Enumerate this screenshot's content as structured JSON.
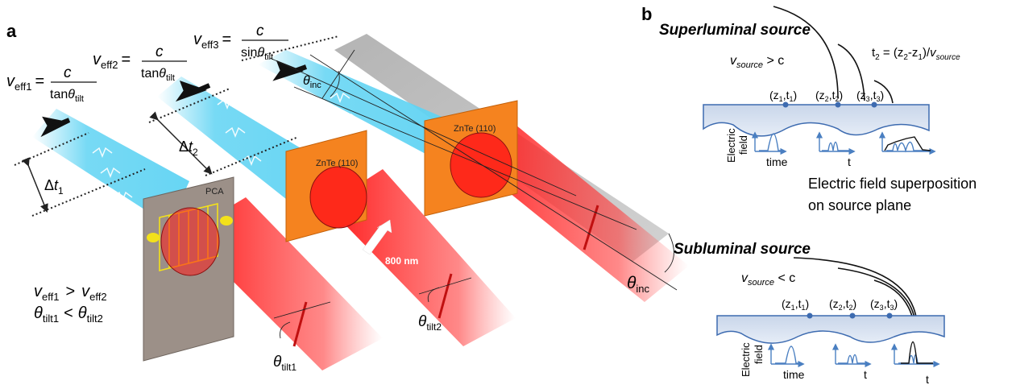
{
  "panels": {
    "a": {
      "label": "a",
      "veff1": {
        "v": "v",
        "sub": "eff1",
        "eq": "=",
        "num": "c",
        "den_pre": "tan",
        "den_theta": "θ",
        "den_sub": "tilt"
      },
      "veff2": {
        "v": "v",
        "sub": "eff2",
        "eq": "=",
        "num": "c",
        "den_pre": "tan",
        "den_theta": "θ",
        "den_sub": "tilt"
      },
      "veff3": {
        "v": "v",
        "sub": "eff3",
        "eq": "=",
        "num": "c",
        "den_pre": "sin",
        "den_theta": "θ",
        "den_sub": "tilt"
      },
      "dt1": {
        "delta": "Δ",
        "t": "t",
        "sub": "1"
      },
      "dt2": {
        "delta": "Δ",
        "t": "t",
        "sub": "2"
      },
      "pca": "PCA",
      "znte1": "ZnTe (110)",
      "znte2": "ZnTe (110)",
      "wavelength": "800 nm",
      "theta_inc_top": {
        "theta": "θ",
        "sub": "inc"
      },
      "theta_inc_right": {
        "theta": "θ",
        "sub": "inc"
      },
      "theta_tilt1": {
        "theta": "θ",
        "sub": "tilt1"
      },
      "theta_tilt2": {
        "theta": "θ",
        "sub": "tilt2"
      },
      "cmp_v": {
        "a": "v",
        "a_sub": "eff1",
        "op": ">",
        "b": "v",
        "b_sub": "eff2"
      },
      "cmp_theta": {
        "a": "θ",
        "a_sub": "tilt1",
        "op": "<",
        "b": "θ",
        "b_sub": "tilt2"
      }
    },
    "b": {
      "label": "b",
      "super_title": "Superluminal source",
      "super_cond": {
        "v": "v",
        "sub": "source",
        "rest": " > c"
      },
      "t2_eq": {
        "lhs": "t",
        "lhs_sub": "2",
        "mid": " = (z",
        "z2": "2",
        "dash": "-z",
        "z1": "1",
        "close": ")/",
        "v": "v",
        "vsub": "source"
      },
      "points_super": [
        {
          "open": "(z",
          "zs": "1",
          "comma": ",t",
          "ts": "1",
          "close": ")"
        },
        {
          "open": "(z",
          "zs": "2",
          "comma": ",t",
          "ts": "2",
          "close": ")"
        },
        {
          "open": "(z",
          "zs": "3",
          "comma": ",t",
          "ts": "3",
          "close": ")"
        }
      ],
      "points_sub": [
        {
          "open": "(z",
          "zs": "1",
          "comma": ",t",
          "ts": "1",
          "close": ")"
        },
        {
          "open": "(z",
          "zs": "2",
          "comma": ",t",
          "ts": "2",
          "close": ")"
        },
        {
          "open": "(z",
          "zs": "3",
          "comma": ",t",
          "ts": "3",
          "close": ")"
        }
      ],
      "electric": "Electric",
      "field": "field",
      "time": "time",
      "t": "t",
      "superposition_1": "Electric field superposition",
      "superposition_2": "on source plane",
      "sub_title": "Subluminal source",
      "sub_cond": {
        "v": "v",
        "sub": "source",
        "rest": " < c"
      }
    }
  },
  "colors": {
    "thz": "#5fd3f3",
    "laser": "#ff1a1a",
    "crystal": "#f5831f",
    "pca": "#9c9088",
    "slab": "#9b9b9b",
    "plane": "#dbe4f1",
    "plane_edge": "#3d6bb0",
    "pulse": "#4a7fc1"
  }
}
